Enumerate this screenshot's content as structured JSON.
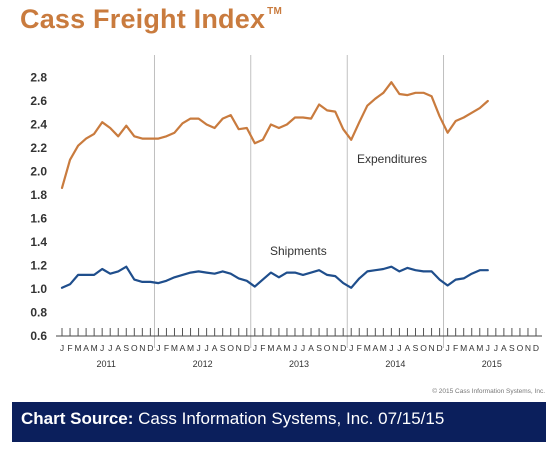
{
  "title": "Cass Freight Index",
  "title_mark": "TM",
  "copyright": "© 2015 Cass Information Systems, Inc.",
  "source": {
    "label": "Chart Source:",
    "text": " Cass Information Systems, Inc. 07/15/15"
  },
  "colors": {
    "title": "#c97b3e",
    "expenditures": "#c97b3e",
    "shipments": "#1f4e8c",
    "source_bar": "#0b1f5c"
  },
  "chart_data": {
    "type": "line",
    "xlabel": "",
    "ylabel": "",
    "ylim": [
      0.6,
      2.9
    ],
    "yticks": [
      0.6,
      0.8,
      1.0,
      1.2,
      1.4,
      1.6,
      1.8,
      2.0,
      2.2,
      2.4,
      2.6,
      2.8
    ],
    "ytick_labels": [
      "0.6",
      "0.8",
      "1.0",
      "1.2",
      "1.4",
      "1.6",
      "1.8",
      "2.0",
      "2.2",
      "2.4",
      "2.6",
      "2.8"
    ],
    "grid": "vertical lines at year boundaries",
    "month_labels": [
      "J",
      "F",
      "M",
      "A",
      "M",
      "J",
      "J",
      "A",
      "S",
      "O",
      "N",
      "D",
      "J",
      "F",
      "M",
      "A",
      "M",
      "J",
      "J",
      "A",
      "S",
      "O",
      "N",
      "D",
      "J",
      "F",
      "M",
      "A",
      "M",
      "J",
      "J",
      "A",
      "S",
      "O",
      "N",
      "D",
      "J",
      "F",
      "M",
      "A",
      "M",
      "J",
      "J",
      "A",
      "S",
      "O",
      "N",
      "D",
      "J",
      "F",
      "M",
      "A",
      "M",
      "J",
      "J",
      "A",
      "S",
      "O",
      "N",
      "D"
    ],
    "years": [
      "2011",
      "2012",
      "2013",
      "2014",
      "2015"
    ],
    "series": [
      {
        "name": "Expenditures",
        "values": [
          1.86,
          2.1,
          2.22,
          2.28,
          2.32,
          2.42,
          2.37,
          2.3,
          2.39,
          2.3,
          2.28,
          2.28,
          2.28,
          2.3,
          2.33,
          2.41,
          2.45,
          2.45,
          2.4,
          2.37,
          2.45,
          2.48,
          2.36,
          2.37,
          2.24,
          2.27,
          2.4,
          2.37,
          2.4,
          2.46,
          2.46,
          2.45,
          2.57,
          2.52,
          2.51,
          2.36,
          2.27,
          2.42,
          2.56,
          2.62,
          2.67,
          2.76,
          2.66,
          2.65,
          2.67,
          2.67,
          2.64,
          2.47,
          2.33,
          2.43,
          2.46,
          2.5,
          2.54,
          2.6
        ]
      },
      {
        "name": "Shipments",
        "values": [
          1.01,
          1.04,
          1.12,
          1.12,
          1.12,
          1.17,
          1.13,
          1.15,
          1.19,
          1.08,
          1.06,
          1.06,
          1.05,
          1.07,
          1.1,
          1.12,
          1.14,
          1.15,
          1.14,
          1.13,
          1.15,
          1.13,
          1.09,
          1.07,
          1.02,
          1.08,
          1.14,
          1.1,
          1.14,
          1.14,
          1.12,
          1.14,
          1.16,
          1.12,
          1.11,
          1.05,
          1.01,
          1.09,
          1.15,
          1.16,
          1.17,
          1.19,
          1.15,
          1.18,
          1.16,
          1.15,
          1.15,
          1.08,
          1.03,
          1.08,
          1.09,
          1.13,
          1.16,
          1.16
        ]
      }
    ]
  }
}
